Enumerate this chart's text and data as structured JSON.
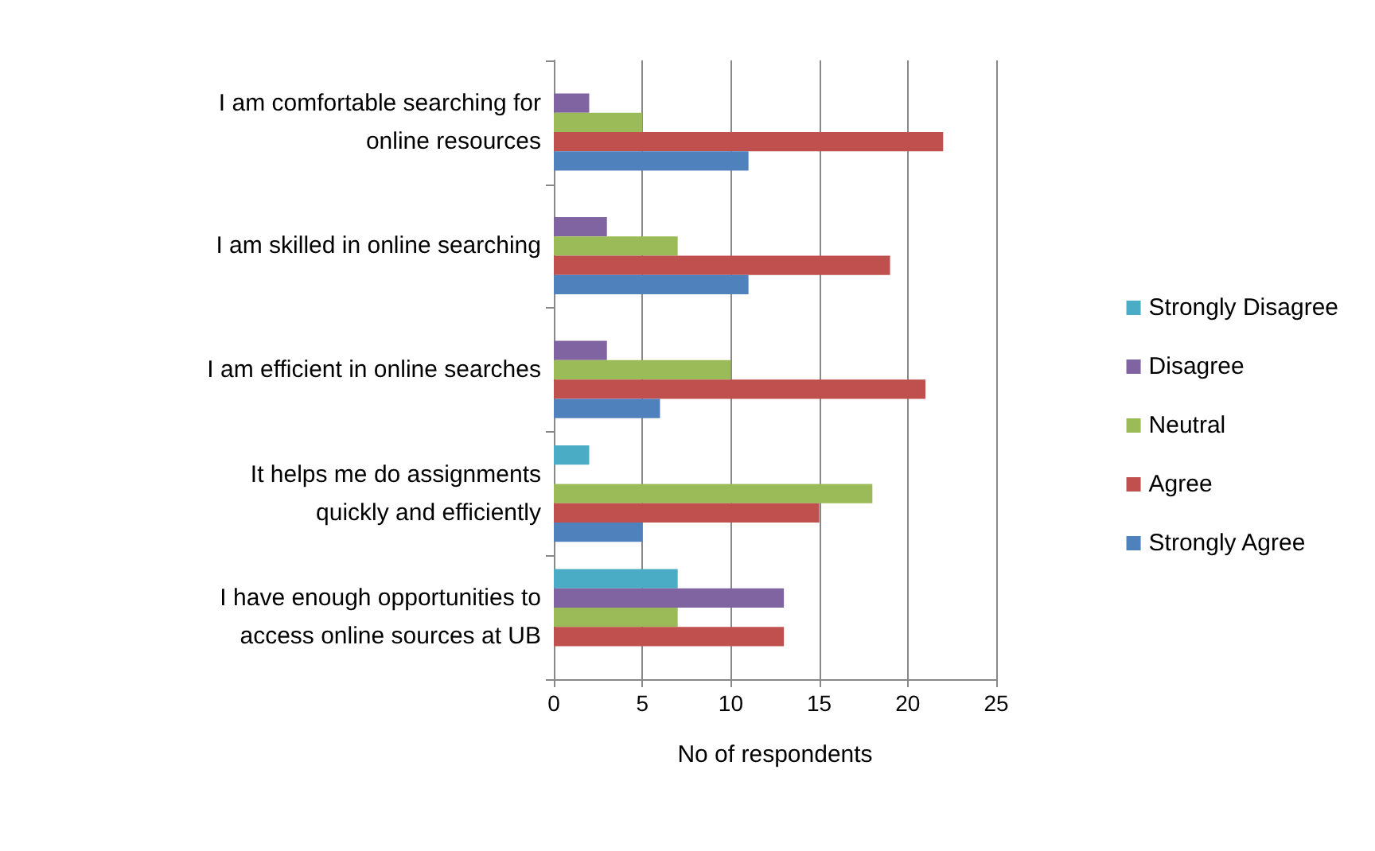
{
  "chart_data": {
    "type": "bar",
    "orientation": "horizontal",
    "xlabel": "No of respondents",
    "categories": [
      "I am comfortable searching for\nonline resources",
      "I am skilled in online searching",
      "I am efficient in online searches",
      "It helps me do assignments\nquickly and efficiently",
      "I have enough opportunities to\naccess online sources at UB"
    ],
    "series": [
      {
        "name": "Strongly Disagree",
        "color": "#4bacc6",
        "values": [
          0,
          0,
          0,
          2,
          7
        ]
      },
      {
        "name": "Disagree",
        "color": "#8064a2",
        "values": [
          2,
          3,
          3,
          0,
          13
        ]
      },
      {
        "name": "Neutral",
        "color": "#9bbb59",
        "values": [
          5,
          7,
          10,
          18,
          7
        ]
      },
      {
        "name": "Agree",
        "color": "#c0504d",
        "values": [
          22,
          19,
          21,
          15,
          13
        ]
      },
      {
        "name": "Strongly Agree",
        "color": "#4f81bd",
        "values": [
          11,
          11,
          6,
          5,
          0
        ]
      }
    ],
    "xlim": [
      0,
      25
    ],
    "xticks": [
      0,
      5,
      10,
      15,
      20,
      25
    ],
    "grid": "x",
    "legend": "right"
  }
}
